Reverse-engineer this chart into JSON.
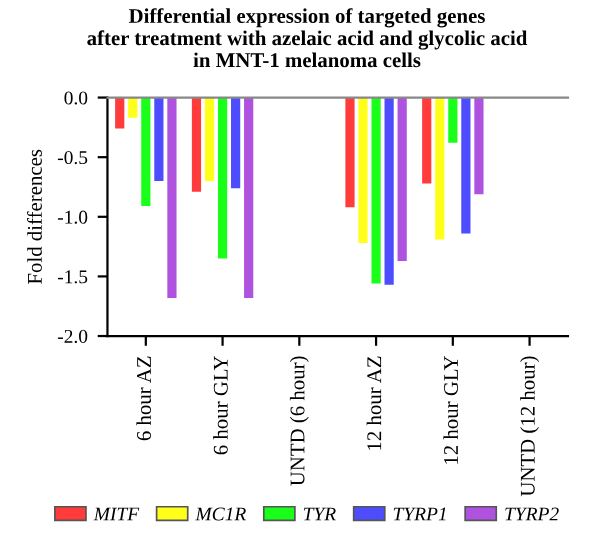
{
  "chart_data": {
    "type": "bar",
    "title": "Differential expression of targeted genes\nafter treatment with azelaic acid and glycolic acid\nin MNT-1 melanoma cells",
    "ylabel": "Fold differences",
    "categories": [
      "6 hour AZ",
      "6 hour GLY",
      "UNTD (6 hour)",
      "12 hour AZ",
      "12 hour GLY",
      "UNTD (12 hour)"
    ],
    "series": [
      {
        "name": "MITF",
        "color": "#ff3b3b",
        "values": [
          -0.26,
          -0.79,
          0,
          -0.92,
          -0.72,
          0
        ]
      },
      {
        "name": "MC1R",
        "color": "#ffff1a",
        "values": [
          -0.17,
          -0.7,
          0,
          -1.22,
          -1.19,
          0
        ]
      },
      {
        "name": "TYR",
        "color": "#1aff1a",
        "values": [
          -0.91,
          -1.35,
          0,
          -1.56,
          -0.38,
          0
        ]
      },
      {
        "name": "TYRP1",
        "color": "#4d4dff",
        "values": [
          -0.7,
          -0.76,
          0,
          -1.57,
          -1.14,
          0
        ]
      },
      {
        "name": "TYRP2",
        "color": "#b052e0",
        "values": [
          -1.68,
          -1.68,
          0,
          -1.37,
          -0.81,
          0
        ]
      }
    ],
    "ylim": [
      -2.0,
      0.0
    ],
    "yticks": [
      {
        "value": -2.0,
        "label": "-2.0"
      },
      {
        "value": -1.5,
        "label": "-1.5"
      },
      {
        "value": -1.0,
        "label": "-1.0"
      },
      {
        "value": -0.5,
        "label": "-0.5"
      },
      {
        "value": 0.0,
        "label": "0.0"
      }
    ],
    "grid": false,
    "legend": "bottom"
  }
}
